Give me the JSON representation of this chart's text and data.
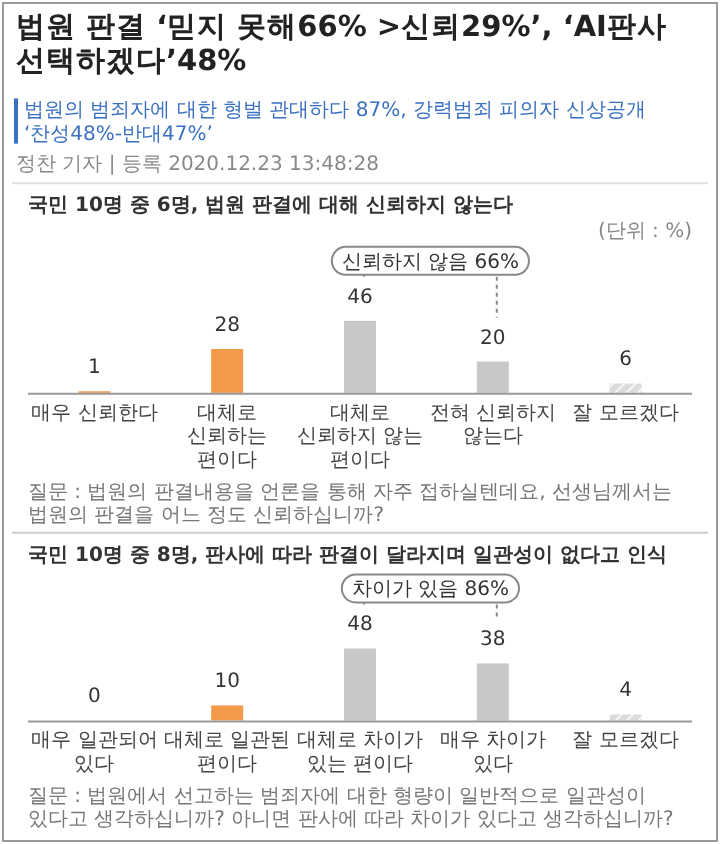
{
  "chart_data": [
    {
      "type": "bar",
      "title": "국민 10명 중 6명, 법원 판결에 대해 신뢰하지 않는다",
      "categories": [
        "매우 신뢰한다",
        "대체로 신뢰하는 편이다",
        "대체로 신뢰하지 않는 편이다",
        "전혀 신뢰하지 않는다",
        "잘 모르겠다"
      ],
      "values": [
        1,
        28,
        46,
        20,
        6
      ],
      "colors": [
        "#f29a4a",
        "#f29a4a",
        "#c8c8c8",
        "#c8c8c8",
        "#dcdcdc"
      ],
      "data_labels": true,
      "annotations": [
        "법원 판결 ‘믿지 못해66% >신뢰29%’, ‘AI판사 선택하겠다’48%",
        "법원의 범죄자에 대한 형벌 관대하다 87%, 강력범죄 피의자 신상공개 ‘찬성48%-반대47%’",
        "정찬 기자 | 등록 2020.12.23 13:48:28",
        "(단위 : %)",
        "신뢰하지 않음 66%",
        "질문 : 법원의 판결내용을 언론을 통해 자주 접하실텐데요, 선생님께서는 법원의 판결을 어느 정도 신뢰하십니까?"
      ]
    },
    {
      "type": "bar",
      "title": "국민 10명 중 8명, 판사에 따라 판결이 달라지며 일관성이 없다고 인식",
      "categories": [
        "매우 일관되어 있다",
        "대체로 일관된 편이다",
        "대체로 차이가 있는 편이다",
        "매우 차이가 있다",
        "잘 모르겠다"
      ],
      "values": [
        0,
        10,
        48,
        38,
        4
      ],
      "colors": [
        "#f29a4a",
        "#f29a4a",
        "#c8c8c8",
        "#c8c8c8",
        "#dcdcdc"
      ],
      "data_labels": true,
      "annotations": [
        "차이가 있음 86%",
        "질문 : 법원에서 선고하는 범죄자에 대한 형량이 일반적으로 일관성이 있다고 생각하십니까? 아니면 판사에 따라 차이가 있다고 생각하십니까?"
      ]
    }
  ]
}
